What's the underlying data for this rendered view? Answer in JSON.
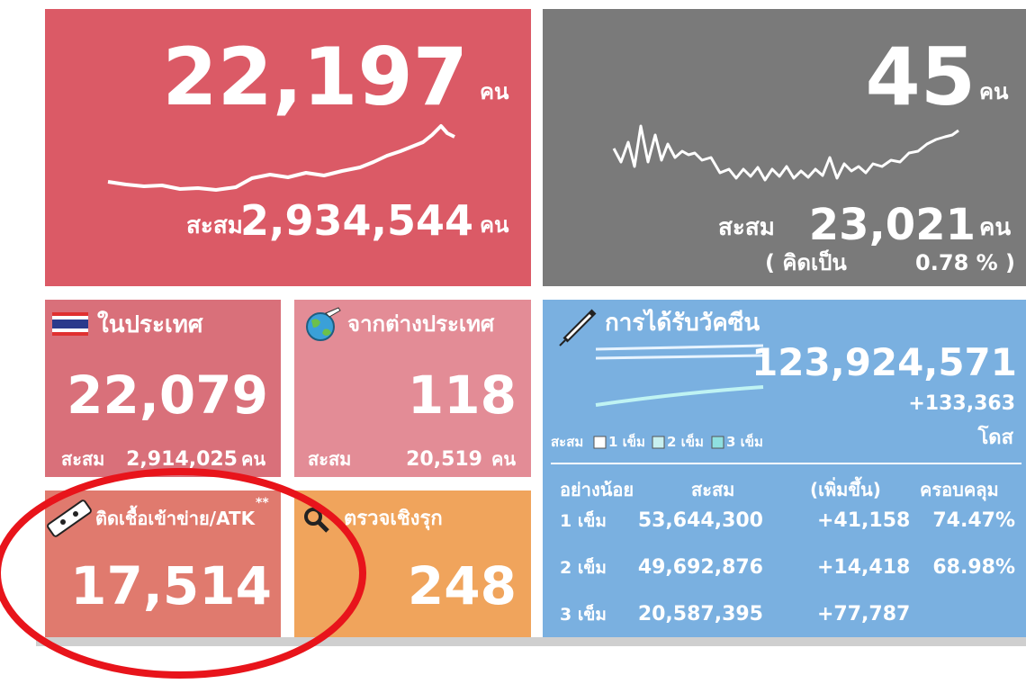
{
  "top_left": {
    "value": "22,197",
    "unit": "คน",
    "cumulative_label": "สะสม",
    "cumulative": "2,934,544",
    "cumulative_unit": "คน"
  },
  "top_right": {
    "value": "45",
    "unit": "คน",
    "cumulative_label": "สะสม",
    "cumulative": "23,021",
    "cumulative_unit": "คน",
    "rate_label": "( คิดเป็น",
    "rate": "0.78 % )"
  },
  "domestic": {
    "title": "ในประเทศ",
    "value": "22,079",
    "cumulative_label": "สะสม",
    "cumulative": "2,914,025",
    "cumulative_unit": "คน"
  },
  "imported": {
    "title": "จากต่างประเทศ",
    "value": "118",
    "cumulative_label": "สะสม",
    "cumulative": "20,519",
    "cumulative_unit": "คน"
  },
  "atk": {
    "title": "ติดเชื้อเข้าข่าย/ATK",
    "note": "**",
    "value": "17,514"
  },
  "proactive": {
    "title": "ตรวจเชิงรุก",
    "value": "248"
  },
  "vaccine": {
    "title": "การได้รับวัคซีน",
    "total": "123,924,571",
    "increase": "+133,363",
    "unit": "โดส",
    "legend_label": "สะสม",
    "legend": [
      "1 เข็ม",
      "2 เข็ม",
      "3 เข็ม"
    ],
    "headers": [
      "อย่างน้อย",
      "สะสม",
      "(เพิ่มขึ้น)",
      "ครอบคลุม"
    ],
    "rows": [
      {
        "dose": "1 เข็ม",
        "total": "53,644,300",
        "increase": "+41,158",
        "coverage": "74.47%"
      },
      {
        "dose": "2 เข็ม",
        "total": "49,692,876",
        "increase": "+14,418",
        "coverage": "68.98%"
      },
      {
        "dose": "3 เข็ม",
        "total": "20,587,395",
        "increase": "+77,787"
      }
    ]
  }
}
